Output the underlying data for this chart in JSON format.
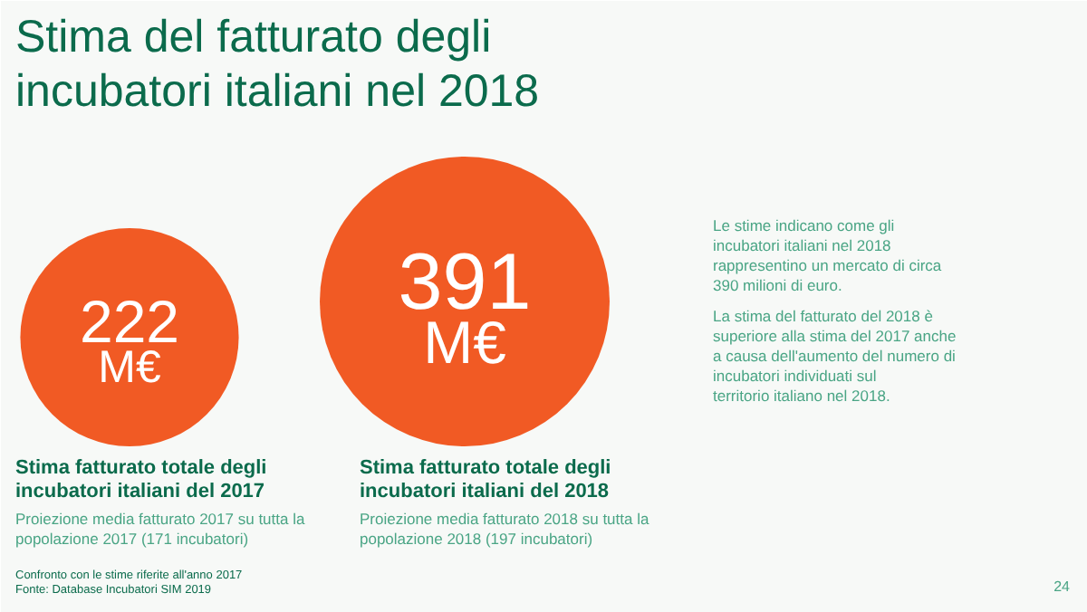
{
  "chart_data": {
    "type": "other",
    "title": "Stima del fatturato degli incubatori italiani nel 2018",
    "categories": [
      "Stima fatturato totale degli incubatori italiani del 2017",
      "Stima fatturato totale degli incubatori italiani del 2018"
    ],
    "values": [
      222,
      391
    ],
    "value_labels": [
      "222 M€",
      "391 M€"
    ],
    "color": "#f15a24",
    "annotations": [
      "Proiezione media fatturato 2017 su tutta la popolazione 2017 (171 incubatori)",
      "Proiezione media fatturato 2018 su tutta la popolazione 2018 (197 incubatori)",
      "Le stime indicano come gli incubatori italiani nel 2018 rappresentino un mercato di circa 390 milioni di euro.",
      "La stima del fatturato del 2018 è superiore alla stima del 2017 anche a causa dell'aumento del numero di incubatori individuati sul territorio italiano nel 2018.",
      "Confronto con le stime riferite all'anno 2017",
      "Fonte: Database Incubatori SIM 2019",
      "24"
    ]
  }
}
